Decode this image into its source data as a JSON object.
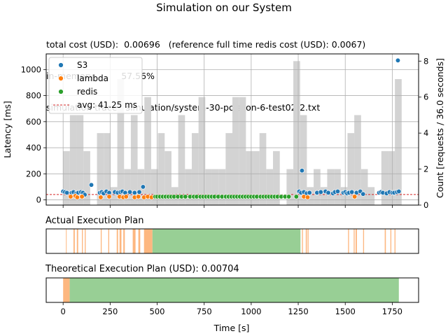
{
  "title": "Simulation on our System",
  "info_lines": [
    "total cost (USD):  0.00696   (reference full time redis cost (USD): 0.0067)",
    "in-memory:         57.56%",
    "simulation trace:  simulation/system-30-poisson-6-test02-2.txt"
  ],
  "colors": {
    "S3": "#1f77b4",
    "lambda": "#ff7f0e",
    "redis": "#2ca02c",
    "hist": "#d3d3d3",
    "avg": "#d62728",
    "plan_lambda": "#fdb780",
    "plan_redis": "#98cf95"
  },
  "chart_data": [
    {
      "type": "scatter",
      "title": "",
      "xlabel": "Time [s]",
      "ylabel": "Latency [ms]",
      "y2label": "Count [requests / 36.0 seconds]",
      "xlim": [
        -90,
        1890
      ],
      "ylim": [
        -40,
        1120
      ],
      "y2lim": [
        0,
        8.4
      ],
      "xticks": [
        0,
        250,
        500,
        750,
        1000,
        1250,
        1500,
        1750
      ],
      "yticks": [
        0,
        200,
        400,
        600,
        800,
        1000
      ],
      "y2ticks": [
        0,
        2,
        4,
        6,
        8
      ],
      "grid": true,
      "legend_position": "upper-left",
      "legend": [
        "S3",
        "lambda",
        "redis",
        "avg: 41.25 ms"
      ],
      "avg_latency_ms": 41.25,
      "histogram": {
        "bin_width": 36,
        "starts": [
          0,
          36,
          72,
          108,
          144,
          180,
          216,
          252,
          288,
          324,
          360,
          396,
          432,
          468,
          504,
          540,
          576,
          612,
          648,
          684,
          720,
          756,
          792,
          828,
          864,
          900,
          936,
          972,
          1008,
          1044,
          1080,
          1116,
          1152,
          1188,
          1224,
          1260,
          1296,
          1332,
          1368,
          1404,
          1440,
          1476,
          1512,
          1548,
          1584,
          1620,
          1656,
          1692,
          1728,
          1764
        ],
        "counts": [
          3,
          5,
          5,
          3,
          0,
          4,
          4,
          1,
          7,
          2,
          5,
          2,
          6,
          2,
          4,
          3,
          1,
          5,
          2,
          4,
          6,
          2,
          2,
          2,
          4,
          6,
          6,
          3,
          3,
          4,
          2,
          3,
          0,
          2,
          8,
          5,
          1,
          2,
          1,
          2,
          2,
          1,
          4,
          5,
          2,
          1,
          0,
          3,
          3,
          7
        ]
      },
      "series": [
        {
          "name": "S3",
          "x": [
            0,
            10,
            20,
            45,
            55,
            70,
            80,
            95,
            105,
            115,
            150,
            195,
            205,
            215,
            230,
            245,
            275,
            290,
            305,
            315,
            330,
            355,
            380,
            405,
            425,
            1255,
            1265,
            1280,
            1295,
            1310,
            1350,
            1370,
            1395,
            1410,
            1435,
            1445,
            1460,
            1490,
            1500,
            1510,
            1520,
            1535,
            1560,
            1580,
            1595,
            1680,
            1690,
            1700,
            1720,
            1735,
            1750,
            1760,
            1775,
            1785,
            1270,
            1780
          ],
          "y": [
            65,
            60,
            55,
            55,
            60,
            50,
            55,
            60,
            55,
            40,
            115,
            55,
            60,
            50,
            65,
            55,
            60,
            55,
            60,
            65,
            55,
            60,
            55,
            60,
            100,
            65,
            55,
            60,
            50,
            55,
            55,
            60,
            65,
            55,
            50,
            60,
            65,
            55,
            60,
            50,
            55,
            60,
            55,
            65,
            45,
            55,
            60,
            55,
            50,
            60,
            55,
            55,
            60,
            65,
            225,
            1070
          ]
        },
        {
          "name": "lambda",
          "x": [
            40,
            65,
            75,
            100,
            200,
            245,
            300,
            320,
            335,
            380,
            400,
            430,
            450,
            470,
            1280,
            1300,
            1550
          ],
          "y": [
            25,
            30,
            20,
            25,
            20,
            25,
            25,
            20,
            25,
            20,
            25,
            20,
            25,
            20,
            25,
            20,
            25
          ]
        },
        {
          "name": "redis",
          "x": [
            490,
            500,
            515,
            530,
            545,
            560,
            575,
            590,
            610,
            630,
            650,
            675,
            695,
            710,
            730,
            745,
            760,
            775,
            790,
            805,
            825,
            845,
            865,
            880,
            895,
            910,
            925,
            940,
            955,
            970,
            985,
            1000,
            1015,
            1030,
            1050,
            1065,
            1080,
            1095,
            1110,
            1125,
            1140,
            1160,
            1180,
            1200,
            1240
          ],
          "y": [
            25,
            25,
            25,
            25,
            25,
            25,
            25,
            25,
            25,
            25,
            25,
            25,
            25,
            25,
            25,
            25,
            25,
            25,
            25,
            25,
            25,
            25,
            25,
            25,
            25,
            25,
            25,
            25,
            25,
            25,
            25,
            25,
            25,
            25,
            25,
            25,
            25,
            25,
            25,
            25,
            25,
            25,
            25,
            25,
            25
          ]
        }
      ]
    },
    {
      "type": "bar",
      "title": "Actual Execution Plan",
      "xlim": [
        -90,
        1890
      ],
      "segments": [
        {
          "mode": "lambda",
          "start": 15,
          "end": 18
        },
        {
          "mode": "lambda",
          "start": 55,
          "end": 62
        },
        {
          "mode": "lambda",
          "start": 73,
          "end": 80
        },
        {
          "mode": "lambda",
          "start": 100,
          "end": 105
        },
        {
          "mode": "lambda",
          "start": 115,
          "end": 120
        },
        {
          "mode": "lambda",
          "start": 200,
          "end": 205
        },
        {
          "mode": "lambda",
          "start": 240,
          "end": 245
        },
        {
          "mode": "lambda",
          "start": 285,
          "end": 292
        },
        {
          "mode": "lambda",
          "start": 300,
          "end": 310
        },
        {
          "mode": "lambda",
          "start": 320,
          "end": 328
        },
        {
          "mode": "lambda",
          "start": 370,
          "end": 385
        },
        {
          "mode": "lambda",
          "start": 400,
          "end": 410
        },
        {
          "mode": "lambda",
          "start": 430,
          "end": 475
        },
        {
          "mode": "redis",
          "start": 475,
          "end": 1262
        },
        {
          "mode": "lambda",
          "start": 1270,
          "end": 1275
        },
        {
          "mode": "lambda",
          "start": 1290,
          "end": 1296
        },
        {
          "mode": "lambda",
          "start": 1300,
          "end": 1305
        },
        {
          "mode": "lambda",
          "start": 1515,
          "end": 1520
        },
        {
          "mode": "lambda",
          "start": 1545,
          "end": 1550
        },
        {
          "mode": "lambda",
          "start": 1555,
          "end": 1562
        },
        {
          "mode": "lambda",
          "start": 1595,
          "end": 1600
        },
        {
          "mode": "lambda",
          "start": 1710,
          "end": 1716
        },
        {
          "mode": "lambda",
          "start": 1740,
          "end": 1745
        },
        {
          "mode": "lambda",
          "start": 1762,
          "end": 1767
        }
      ]
    },
    {
      "type": "bar",
      "title": "Theoretical Execution Plan (USD): 0.00704",
      "xlabel": "Time [s]",
      "xlim": [
        -90,
        1890
      ],
      "xticks": [
        0,
        250,
        500,
        750,
        1000,
        1250,
        1500,
        1750
      ],
      "segments": [
        {
          "mode": "lambda",
          "start": 0,
          "end": 35
        },
        {
          "mode": "redis",
          "start": 35,
          "end": 1785
        }
      ]
    }
  ]
}
